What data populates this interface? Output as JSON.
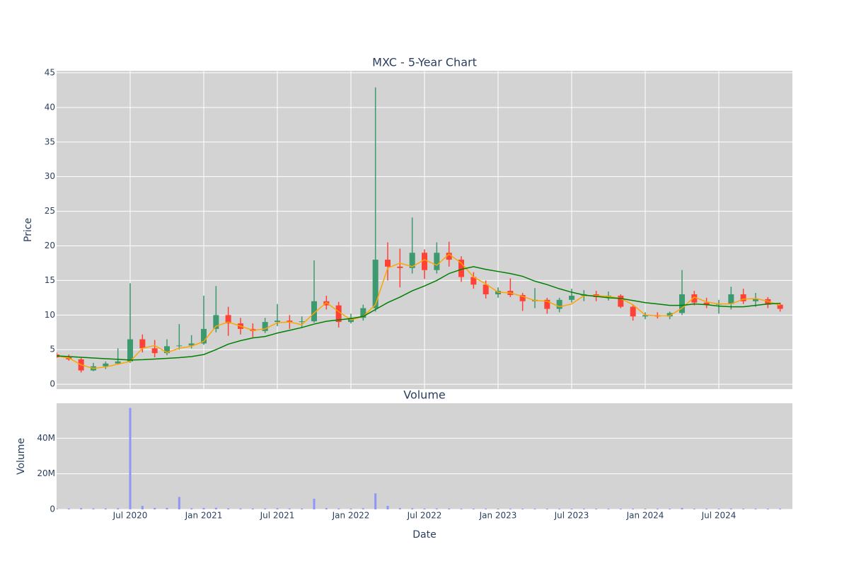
{
  "chart_data": [
    {
      "type": "candlestick",
      "title": "MXC - 5-Year Chart",
      "y_label": "Price",
      "x": [
        "2020-01",
        "2020-02",
        "2020-03",
        "2020-04",
        "2020-05",
        "2020-06",
        "2020-07",
        "2020-08",
        "2020-09",
        "2020-10",
        "2020-11",
        "2020-12",
        "2021-01",
        "2021-02",
        "2021-03",
        "2021-04",
        "2021-05",
        "2021-06",
        "2021-07",
        "2021-08",
        "2021-09",
        "2021-10",
        "2021-11",
        "2021-12",
        "2022-01",
        "2022-02",
        "2022-03",
        "2022-04",
        "2022-05",
        "2022-06",
        "2022-07",
        "2022-08",
        "2022-09",
        "2022-10",
        "2022-11",
        "2022-12",
        "2023-01",
        "2023-02",
        "2023-03",
        "2023-04",
        "2023-05",
        "2023-06",
        "2023-07",
        "2023-08",
        "2023-09",
        "2023-10",
        "2023-11",
        "2023-12",
        "2024-01",
        "2024-02",
        "2024-03",
        "2024-04",
        "2024-05",
        "2024-06",
        "2024-07",
        "2024-08",
        "2024-09",
        "2024-10",
        "2024-11",
        "2024-12"
      ],
      "open": [
        4.3,
        3.9,
        3.6,
        2.0,
        2.6,
        3.0,
        3.3,
        6.5,
        5.2,
        4.5,
        5.5,
        5.6,
        5.9,
        8.0,
        10.0,
        8.8,
        8.0,
        7.7,
        9.0,
        9.2,
        9.0,
        9.1,
        12.0,
        11.4,
        9.0,
        9.6,
        11.0,
        18.0,
        17.0,
        16.8,
        19.0,
        16.5,
        19.0,
        18.0,
        15.5,
        14.4,
        13.0,
        13.5,
        12.9,
        12.0,
        12.2,
        10.9,
        12.2,
        12.8,
        13.0,
        12.6,
        12.8,
        11.2,
        9.8,
        10.0,
        9.8,
        10.3,
        13.0,
        11.8,
        11.5,
        11.6,
        13.0,
        12.0,
        12.3,
        11.5
      ],
      "high": [
        4.6,
        4.3,
        3.8,
        3.1,
        3.3,
        5.2,
        14.6,
        7.2,
        6.4,
        6.5,
        8.7,
        7.1,
        12.8,
        14.2,
        11.2,
        9.6,
        8.8,
        9.6,
        11.6,
        10.0,
        9.8,
        17.9,
        12.8,
        11.9,
        10.2,
        11.5,
        42.9,
        20.5,
        19.6,
        24.1,
        19.5,
        20.5,
        20.6,
        18.5,
        16.2,
        15.0,
        14.0,
        15.3,
        13.2,
        13.9,
        12.5,
        12.5,
        13.8,
        13.6,
        13.5,
        13.4,
        13.0,
        11.4,
        10.4,
        10.4,
        10.5,
        16.5,
        13.5,
        12.5,
        12.2,
        14.1,
        13.8,
        13.2,
        12.6,
        11.8
      ],
      "low": [
        3.8,
        3.4,
        1.7,
        1.9,
        2.2,
        2.9,
        3.1,
        4.6,
        3.9,
        4.2,
        5.0,
        5.2,
        5.7,
        7.5,
        7.0,
        7.2,
        6.8,
        7.4,
        8.4,
        8.0,
        8.2,
        8.9,
        10.8,
        8.2,
        8.8,
        9.2,
        10.5,
        15.0,
        14.0,
        16.0,
        15.2,
        16.0,
        17.0,
        14.8,
        13.8,
        12.4,
        12.5,
        12.6,
        10.6,
        11.0,
        10.2,
        10.4,
        11.8,
        12.0,
        12.0,
        12.1,
        11.0,
        9.2,
        9.4,
        9.5,
        9.4,
        10.0,
        11.4,
        11.0,
        10.2,
        10.8,
        11.6,
        11.2,
        11.0,
        10.5
      ],
      "close": [
        3.9,
        3.6,
        2.0,
        2.6,
        3.0,
        3.3,
        6.5,
        5.2,
        4.5,
        5.5,
        5.6,
        5.9,
        8.0,
        10.0,
        8.8,
        8.0,
        7.7,
        9.0,
        9.2,
        9.0,
        9.1,
        12.0,
        11.4,
        9.0,
        9.6,
        11.0,
        18.0,
        17.0,
        16.8,
        19.0,
        16.5,
        19.0,
        18.0,
        15.5,
        14.4,
        13.0,
        13.5,
        12.9,
        12.0,
        12.2,
        10.9,
        12.2,
        12.8,
        13.0,
        12.6,
        12.8,
        11.2,
        9.8,
        10.0,
        9.8,
        10.3,
        13.0,
        11.8,
        11.5,
        11.6,
        13.0,
        12.0,
        12.3,
        11.5,
        10.9
      ],
      "increasing_color": "#3d9970",
      "decreasing_color": "#ff4136",
      "lines": [
        {
          "color": "orange",
          "values": [
            4.1,
            3.8,
            2.8,
            2.3,
            2.5,
            2.9,
            3.3,
            5.2,
            5.6,
            4.6,
            5.2,
            5.5,
            6.2,
            8.4,
            9.0,
            8.4,
            7.8,
            8.0,
            8.9,
            9.0,
            8.6,
            10.3,
            11.8,
            10.5,
            9.3,
            9.8,
            11.5,
            16.8,
            17.5,
            17.0,
            18.0,
            17.2,
            18.8,
            17.5,
            15.5,
            14.5,
            13.3,
            13.2,
            12.7,
            12.1,
            12.0,
            11.2,
            11.6,
            12.8,
            12.8,
            12.7,
            12.4,
            11.5,
            10.0,
            9.9,
            9.9,
            11.0,
            12.6,
            11.9,
            11.6,
            11.6,
            12.3,
            12.4,
            12.0,
            11.4
          ]
        },
        {
          "color": "green",
          "values": [
            4.1,
            4.0,
            3.9,
            3.8,
            3.7,
            3.6,
            3.5,
            3.55,
            3.65,
            3.75,
            3.85,
            4.0,
            4.3,
            5.0,
            5.8,
            6.3,
            6.7,
            6.9,
            7.4,
            7.8,
            8.2,
            8.7,
            9.1,
            9.3,
            9.5,
            9.8,
            10.8,
            11.8,
            12.6,
            13.5,
            14.2,
            15.0,
            16.0,
            16.6,
            17.0,
            16.6,
            16.3,
            16.0,
            15.6,
            14.9,
            14.4,
            13.8,
            13.3,
            12.9,
            12.7,
            12.5,
            12.4,
            12.1,
            11.8,
            11.6,
            11.4,
            11.4,
            11.6,
            11.5,
            11.3,
            11.2,
            11.2,
            11.4,
            11.6,
            11.7
          ]
        }
      ],
      "xlim": [
        "2020-01",
        "2025-01"
      ],
      "ylim": [
        -0.7,
        45.3
      ],
      "yticks": [
        0,
        5,
        10,
        15,
        20,
        25,
        30,
        35,
        40,
        45
      ],
      "grid": true
    },
    {
      "type": "bar",
      "title": "Volume",
      "y_label": "Volume",
      "x_label": "Date",
      "x": [
        "2020-01",
        "2020-02",
        "2020-03",
        "2020-04",
        "2020-05",
        "2020-06",
        "2020-07",
        "2020-08",
        "2020-09",
        "2020-10",
        "2020-11",
        "2020-12",
        "2021-01",
        "2021-02",
        "2021-03",
        "2021-04",
        "2021-05",
        "2021-06",
        "2021-07",
        "2021-08",
        "2021-09",
        "2021-10",
        "2021-11",
        "2021-12",
        "2022-01",
        "2022-02",
        "2022-03",
        "2022-04",
        "2022-05",
        "2022-06",
        "2022-07",
        "2022-08",
        "2022-09",
        "2022-10",
        "2022-11",
        "2022-12",
        "2023-01",
        "2023-02",
        "2023-03",
        "2023-04",
        "2023-05",
        "2023-06",
        "2023-07",
        "2023-08",
        "2023-09",
        "2023-10",
        "2023-11",
        "2023-12",
        "2024-01",
        "2024-02",
        "2024-03",
        "2024-04",
        "2024-05",
        "2024-06",
        "2024-07",
        "2024-08",
        "2024-09",
        "2024-10",
        "2024-11",
        "2024-12"
      ],
      "values": [
        500000,
        500000,
        700000,
        500000,
        500000,
        600000,
        57000000,
        2000000,
        800000,
        800000,
        7000000,
        600000,
        800000,
        900000,
        600000,
        500000,
        500000,
        500000,
        600000,
        500000,
        500000,
        6000000,
        700000,
        500000,
        500000,
        600000,
        9000000,
        2000000,
        700000,
        600000,
        500000,
        500000,
        500000,
        400000,
        400000,
        400000,
        400000,
        400000,
        400000,
        400000,
        400000,
        400000,
        400000,
        400000,
        400000,
        400000,
        400000,
        400000,
        400000,
        400000,
        400000,
        800000,
        400000,
        400000,
        400000,
        500000,
        400000,
        400000,
        400000,
        400000
      ],
      "color": "#8f96f5",
      "xlim": [
        "2020-01",
        "2025-01"
      ],
      "xticks": [
        {
          "value": "2020-07",
          "label": "Jul 2020"
        },
        {
          "value": "2021-01",
          "label": "Jan 2021"
        },
        {
          "value": "2021-07",
          "label": "Jul 2021"
        },
        {
          "value": "2022-01",
          "label": "Jan 2022"
        },
        {
          "value": "2022-07",
          "label": "Jul 2022"
        },
        {
          "value": "2023-01",
          "label": "Jan 2023"
        },
        {
          "value": "2023-07",
          "label": "Jul 2023"
        },
        {
          "value": "2024-01",
          "label": "Jan 2024"
        },
        {
          "value": "2024-07",
          "label": "Jul 2024"
        }
      ],
      "ylim": [
        0,
        59600000
      ],
      "yticks": [
        0,
        {
          "value": 20000000,
          "label": "20M"
        },
        {
          "value": 40000000,
          "label": "40M"
        }
      ],
      "grid": true
    }
  ]
}
